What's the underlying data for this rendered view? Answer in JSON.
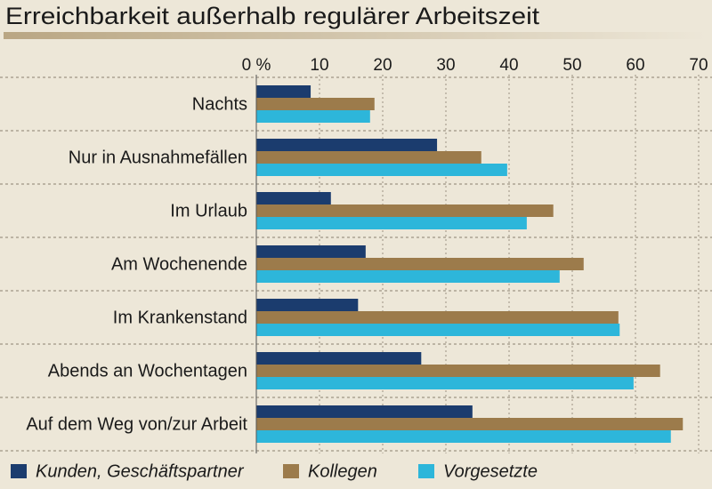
{
  "chart_data": {
    "type": "hbar",
    "title": "Erreichbarkeit außerhalb regulärer Arbeitszeit",
    "categories": [
      "Nachts",
      "Nur in Ausnahmefällen",
      "Im Urlaub",
      "Am Wochenende",
      "Im Krankenstand",
      "Abends an Wochentagen",
      "Auf dem Weg von/zur Arbeit"
    ],
    "series": [
      {
        "name": "Kunden, Geschäftspartner",
        "color": "#1b3c6e",
        "values": [
          8.6,
          28.6,
          11.8,
          17.3,
          16.1,
          26.1,
          34.2
        ]
      },
      {
        "name": "Kollegen",
        "color": "#9c7b4b",
        "values": [
          18.7,
          35.6,
          47.0,
          51.8,
          57.3,
          63.9,
          67.5
        ]
      },
      {
        "name": "Vorgesetzte",
        "color": "#2db6da",
        "values": [
          18.0,
          39.7,
          42.8,
          48.0,
          57.5,
          59.7,
          65.6
        ]
      }
    ],
    "xlim": [
      0,
      70
    ],
    "xticks": [
      {
        "value": 0,
        "label": "0 %"
      },
      10,
      20,
      30,
      40,
      50,
      60,
      70
    ],
    "grid": true
  }
}
